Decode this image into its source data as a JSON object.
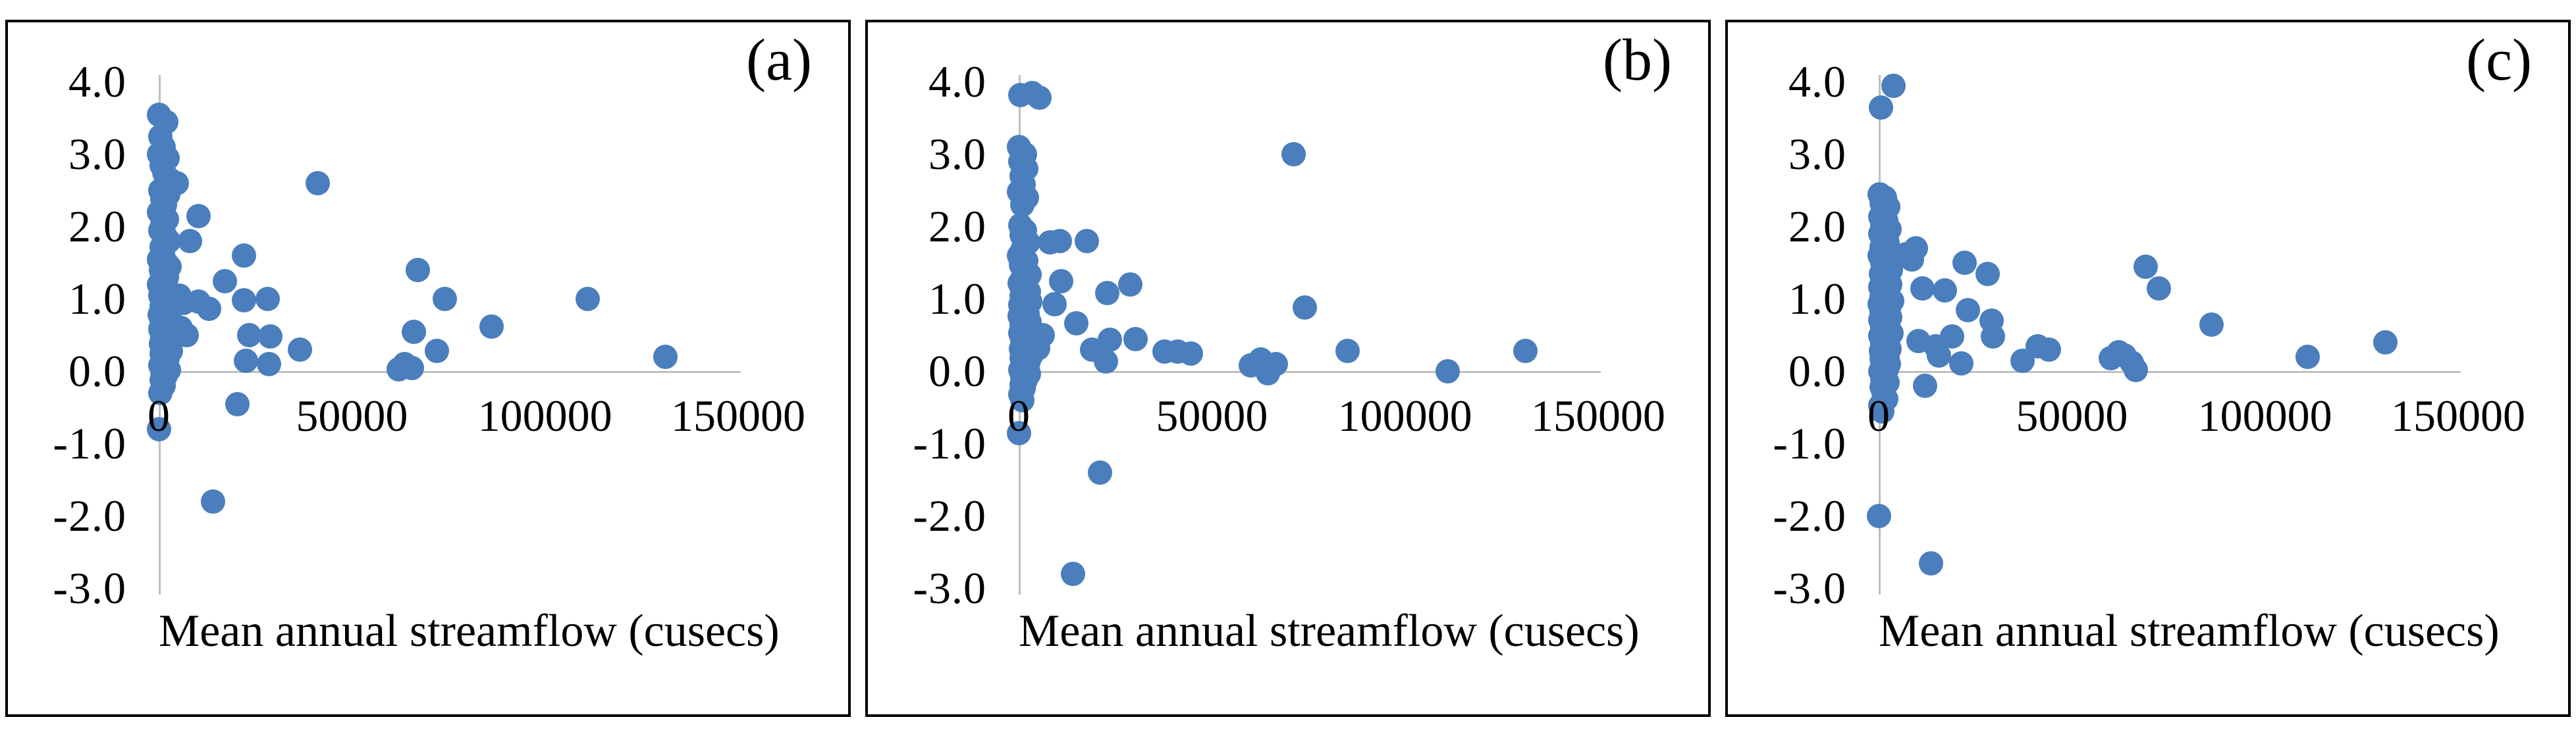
{
  "figure": {
    "axis_color": "#bfbfbf",
    "dot_color": "#4a7ebc",
    "background": "#ffffff",
    "border_color": "#000000"
  },
  "chart_data": [
    {
      "id": "a",
      "type": "scatter",
      "corner_label": "(a)",
      "title": "",
      "xlabel": "Mean annual streamflow (cusecs)",
      "ylabel": "",
      "xlim": [
        0,
        150000
      ],
      "ylim": [
        -3.0,
        4.0
      ],
      "x_ticks": [
        0,
        50000,
        100000,
        150000
      ],
      "x_tick_labels": [
        "0",
        "50000",
        "100000",
        "150000"
      ],
      "y_ticks": [
        4.0,
        3.0,
        2.0,
        1.0,
        0.0,
        -1.0,
        -2.0,
        -3.0
      ],
      "y_tick_labels": [
        "4.0",
        "3.0",
        "2.0",
        "1.0",
        "0.0",
        "-1.0",
        "-2.0",
        "-3.0"
      ],
      "grid": false,
      "legend": "none",
      "points": [
        [
          0,
          3.55
        ],
        [
          1800,
          3.45
        ],
        [
          400,
          3.25
        ],
        [
          1200,
          3.1
        ],
        [
          0,
          3.0
        ],
        [
          2200,
          2.95
        ],
        [
          600,
          2.85
        ],
        [
          1400,
          2.75
        ],
        [
          2900,
          2.65
        ],
        [
          4600,
          2.6
        ],
        [
          300,
          2.5
        ],
        [
          2400,
          2.45
        ],
        [
          900,
          2.38
        ],
        [
          1600,
          2.3
        ],
        [
          0,
          2.2
        ],
        [
          2000,
          2.1
        ],
        [
          800,
          2.03
        ],
        [
          300,
          1.95
        ],
        [
          1500,
          1.88
        ],
        [
          2500,
          1.8
        ],
        [
          600,
          1.72
        ],
        [
          1100,
          1.62
        ],
        [
          0,
          1.55
        ],
        [
          1900,
          1.5
        ],
        [
          2800,
          1.45
        ],
        [
          500,
          1.4
        ],
        [
          1300,
          1.35
        ],
        [
          2100,
          1.3
        ],
        [
          800,
          1.25
        ],
        [
          0,
          1.2
        ],
        [
          1700,
          1.15
        ],
        [
          2600,
          1.1
        ],
        [
          400,
          1.05
        ],
        [
          1000,
          1.0
        ],
        [
          2000,
          0.97
        ],
        [
          3000,
          0.93
        ],
        [
          600,
          0.9
        ],
        [
          1500,
          0.86
        ],
        [
          2400,
          0.82
        ],
        [
          200,
          0.78
        ],
        [
          1100,
          0.75
        ],
        [
          2900,
          0.72
        ],
        [
          700,
          0.68
        ],
        [
          1800,
          0.65
        ],
        [
          3300,
          0.62
        ],
        [
          300,
          0.58
        ],
        [
          1300,
          0.55
        ],
        [
          2200,
          0.52
        ],
        [
          900,
          0.48
        ],
        [
          1600,
          0.45
        ],
        [
          2700,
          0.42
        ],
        [
          500,
          0.38
        ],
        [
          1200,
          0.35
        ],
        [
          2000,
          0.32
        ],
        [
          3100,
          0.28
        ],
        [
          700,
          0.25
        ],
        [
          1400,
          0.22
        ],
        [
          2300,
          0.18
        ],
        [
          1000,
          0.15
        ],
        [
          1900,
          0.12
        ],
        [
          400,
          0.08
        ],
        [
          1500,
          0.05
        ],
        [
          2500,
          0.02
        ],
        [
          800,
          0.0
        ],
        [
          1700,
          -0.06
        ],
        [
          600,
          -0.12
        ],
        [
          1200,
          -0.2
        ],
        [
          300,
          -0.3
        ],
        [
          0,
          -0.8
        ],
        [
          5200,
          1.05
        ],
        [
          6300,
          0.95
        ],
        [
          5600,
          0.6
        ],
        [
          7200,
          0.5
        ],
        [
          10200,
          2.15
        ],
        [
          8000,
          1.8
        ],
        [
          10200,
          0.96
        ],
        [
          13000,
          0.86
        ],
        [
          17000,
          1.25
        ],
        [
          22000,
          1.6
        ],
        [
          22000,
          0.98
        ],
        [
          28200,
          1.0
        ],
        [
          23400,
          0.5
        ],
        [
          28800,
          0.48
        ],
        [
          22500,
          0.15
        ],
        [
          28500,
          0.1
        ],
        [
          36500,
          0.3
        ],
        [
          41000,
          2.6
        ],
        [
          20300,
          -0.45
        ],
        [
          14000,
          -1.8
        ],
        [
          62000,
          0.03
        ],
        [
          63500,
          0.1
        ],
        [
          65500,
          0.05
        ],
        [
          67000,
          1.4
        ],
        [
          66000,
          0.55
        ],
        [
          72000,
          0.28
        ],
        [
          74000,
          1.0
        ],
        [
          86000,
          0.62
        ],
        [
          111000,
          1.0
        ],
        [
          131000,
          0.2
        ]
      ]
    },
    {
      "id": "b",
      "type": "scatter",
      "corner_label": "(b)",
      "title": "",
      "xlabel": "Mean annual streamflow (cusecs)",
      "ylabel": "",
      "xlim": [
        0,
        150000
      ],
      "ylim": [
        -3.0,
        4.0
      ],
      "x_ticks": [
        0,
        50000,
        100000,
        150000
      ],
      "x_tick_labels": [
        "0",
        "50000",
        "100000",
        "150000"
      ],
      "y_ticks": [
        4.0,
        3.0,
        2.0,
        1.0,
        0.0,
        -1.0,
        -2.0,
        -3.0
      ],
      "y_tick_labels": [
        "4.0",
        "3.0",
        "2.0",
        "1.0",
        "0.0",
        "-1.0",
        "-2.0",
        "-3.0"
      ],
      "grid": false,
      "legend": "none",
      "points": [
        [
          300,
          3.82
        ],
        [
          3400,
          3.85
        ],
        [
          5200,
          3.78
        ],
        [
          0,
          3.1
        ],
        [
          1500,
          3.0
        ],
        [
          400,
          2.9
        ],
        [
          1900,
          2.8
        ],
        [
          700,
          2.7
        ],
        [
          1200,
          2.58
        ],
        [
          0,
          2.48
        ],
        [
          2100,
          2.4
        ],
        [
          900,
          2.3
        ],
        [
          300,
          2.02
        ],
        [
          1600,
          1.95
        ],
        [
          600,
          1.88
        ],
        [
          2400,
          1.78
        ],
        [
          1100,
          1.7
        ],
        [
          0,
          1.6
        ],
        [
          1800,
          1.53
        ],
        [
          500,
          1.47
        ],
        [
          1400,
          1.4
        ],
        [
          2700,
          1.34
        ],
        [
          800,
          1.28
        ],
        [
          200,
          1.22
        ],
        [
          1700,
          1.16
        ],
        [
          2500,
          1.1
        ],
        [
          600,
          1.05
        ],
        [
          1200,
          1.0
        ],
        [
          2900,
          0.96
        ],
        [
          400,
          0.92
        ],
        [
          1900,
          0.88
        ],
        [
          1000,
          0.84
        ],
        [
          2300,
          0.8
        ],
        [
          100,
          0.76
        ],
        [
          1500,
          0.72
        ],
        [
          2800,
          0.68
        ],
        [
          700,
          0.64
        ],
        [
          1800,
          0.6
        ],
        [
          3200,
          0.57
        ],
        [
          300,
          0.53
        ],
        [
          1300,
          0.5
        ],
        [
          2200,
          0.46
        ],
        [
          900,
          0.42
        ],
        [
          1600,
          0.38
        ],
        [
          2600,
          0.35
        ],
        [
          500,
          0.31
        ],
        [
          1100,
          0.28
        ],
        [
          2000,
          0.25
        ],
        [
          3000,
          0.21
        ],
        [
          700,
          0.18
        ],
        [
          1400,
          0.15
        ],
        [
          2400,
          0.11
        ],
        [
          1000,
          0.08
        ],
        [
          1900,
          0.05
        ],
        [
          400,
          0.02
        ],
        [
          1500,
          0.0
        ],
        [
          2500,
          -0.04
        ],
        [
          800,
          -0.08
        ],
        [
          1700,
          -0.13
        ],
        [
          600,
          -0.18
        ],
        [
          1200,
          -0.24
        ],
        [
          300,
          -0.32
        ],
        [
          900,
          -0.4
        ],
        [
          0,
          -0.85
        ],
        [
          5000,
          0.32
        ],
        [
          6100,
          0.5
        ],
        [
          8000,
          1.78
        ],
        [
          10500,
          1.8
        ],
        [
          17500,
          1.8
        ],
        [
          10900,
          1.25
        ],
        [
          9200,
          0.93
        ],
        [
          22800,
          1.08
        ],
        [
          28800,
          1.2
        ],
        [
          14800,
          0.66
        ],
        [
          19000,
          0.3
        ],
        [
          23600,
          0.44
        ],
        [
          30200,
          0.45
        ],
        [
          22500,
          0.14
        ],
        [
          37600,
          0.27
        ],
        [
          41000,
          0.27
        ],
        [
          44500,
          0.25
        ],
        [
          21000,
          -1.4
        ],
        [
          14000,
          -2.8
        ],
        [
          60000,
          0.08
        ],
        [
          62500,
          0.16
        ],
        [
          64500,
          -0.03
        ],
        [
          66500,
          0.1
        ],
        [
          71000,
          3.0
        ],
        [
          74000,
          0.88
        ],
        [
          85000,
          0.28
        ],
        [
          111000,
          0.0
        ],
        [
          131000,
          0.28
        ]
      ]
    },
    {
      "id": "c",
      "type": "scatter",
      "corner_label": "(c)",
      "title": "",
      "xlabel": "Mean annual streamflow (cusecs)",
      "ylabel": "",
      "xlim": [
        0,
        150000
      ],
      "ylim": [
        -3.0,
        4.0
      ],
      "x_ticks": [
        0,
        50000,
        100000,
        150000
      ],
      "x_tick_labels": [
        "0",
        "50000",
        "100000",
        "150000"
      ],
      "y_ticks": [
        4.0,
        3.0,
        2.0,
        1.0,
        0.0,
        -1.0,
        -2.0,
        -3.0
      ],
      "y_tick_labels": [
        "4.0",
        "3.0",
        "2.0",
        "1.0",
        "0.0",
        "-1.0",
        "-2.0",
        "-3.0"
      ],
      "grid": false,
      "legend": "none",
      "points": [
        [
          500,
          3.65
        ],
        [
          3800,
          3.95
        ],
        [
          200,
          2.45
        ],
        [
          1600,
          2.4
        ],
        [
          700,
          2.33
        ],
        [
          2400,
          2.27
        ],
        [
          1100,
          2.2
        ],
        [
          300,
          2.14
        ],
        [
          1900,
          2.08
        ],
        [
          800,
          2.02
        ],
        [
          2800,
          1.96
        ],
        [
          400,
          1.9
        ],
        [
          1400,
          1.84
        ],
        [
          2200,
          1.78
        ],
        [
          600,
          1.72
        ],
        [
          1700,
          1.66
        ],
        [
          100,
          1.6
        ],
        [
          2600,
          1.55
        ],
        [
          900,
          1.5
        ],
        [
          1300,
          1.45
        ],
        [
          3100,
          1.4
        ],
        [
          500,
          1.35
        ],
        [
          2000,
          1.3
        ],
        [
          1000,
          1.25
        ],
        [
          2900,
          1.2
        ],
        [
          300,
          1.16
        ],
        [
          1500,
          1.12
        ],
        [
          2300,
          1.08
        ],
        [
          700,
          1.04
        ],
        [
          1800,
          1.0
        ],
        [
          3400,
          0.97
        ],
        [
          200,
          0.93
        ],
        [
          1200,
          0.9
        ],
        [
          2500,
          0.86
        ],
        [
          600,
          0.82
        ],
        [
          1600,
          0.78
        ],
        [
          2900,
          0.75
        ],
        [
          400,
          0.71
        ],
        [
          1100,
          0.68
        ],
        [
          2100,
          0.64
        ],
        [
          800,
          0.6
        ],
        [
          1900,
          0.56
        ],
        [
          3200,
          0.53
        ],
        [
          300,
          0.49
        ],
        [
          1400,
          0.46
        ],
        [
          2400,
          0.42
        ],
        [
          900,
          0.38
        ],
        [
          1700,
          0.35
        ],
        [
          2800,
          0.31
        ],
        [
          500,
          0.28
        ],
        [
          1300,
          0.24
        ],
        [
          2200,
          0.2
        ],
        [
          700,
          0.17
        ],
        [
          1600,
          0.13
        ],
        [
          2600,
          0.1
        ],
        [
          1000,
          0.06
        ],
        [
          2000,
          0.03
        ],
        [
          400,
          0.0
        ],
        [
          1500,
          -0.05
        ],
        [
          800,
          -0.1
        ],
        [
          2300,
          -0.15
        ],
        [
          600,
          -0.22
        ],
        [
          1200,
          -0.3
        ],
        [
          1800,
          -0.38
        ],
        [
          400,
          -0.47
        ],
        [
          900,
          -0.55
        ],
        [
          7000,
          1.62
        ],
        [
          9500,
          1.7
        ],
        [
          8500,
          1.55
        ],
        [
          11300,
          1.15
        ],
        [
          17000,
          1.12
        ],
        [
          22200,
          1.5
        ],
        [
          28200,
          1.35
        ],
        [
          23000,
          0.85
        ],
        [
          29200,
          0.7
        ],
        [
          29500,
          0.48
        ],
        [
          10200,
          0.42
        ],
        [
          14700,
          0.35
        ],
        [
          19000,
          0.48
        ],
        [
          15500,
          0.22
        ],
        [
          21300,
          0.11
        ],
        [
          12000,
          -0.2
        ],
        [
          37200,
          0.15
        ],
        [
          41000,
          0.35
        ],
        [
          44000,
          0.3
        ],
        [
          0,
          -2.0
        ],
        [
          13500,
          -2.65
        ],
        [
          60000,
          0.18
        ],
        [
          62000,
          0.26
        ],
        [
          63500,
          0.22
        ],
        [
          65500,
          0.12
        ],
        [
          66500,
          0.02
        ],
        [
          69000,
          1.45
        ],
        [
          72500,
          1.15
        ],
        [
          86000,
          0.65
        ],
        [
          111000,
          0.2
        ],
        [
          131000,
          0.4
        ]
      ]
    }
  ]
}
